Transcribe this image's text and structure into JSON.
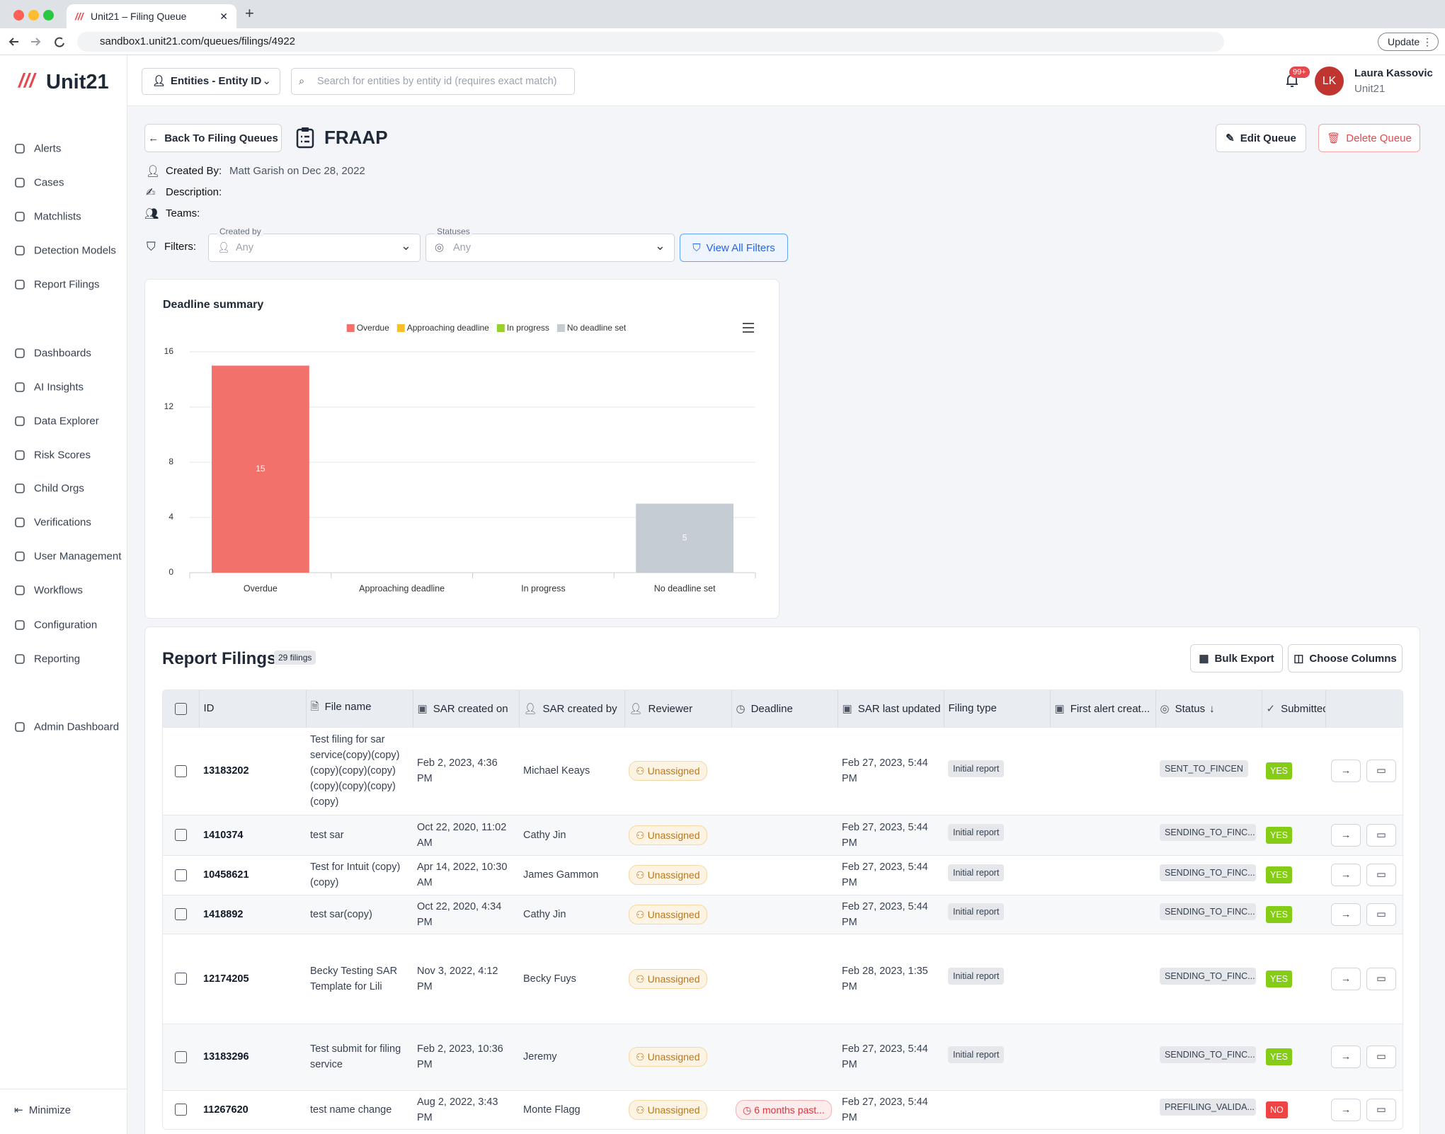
{
  "browser": {
    "tab_title": "Unit21 – Filing Queue",
    "url": "sandbox1.unit21.com/queues/filings/4922",
    "update": "Update"
  },
  "sidebar": {
    "brand": "Unit21",
    "nav": [
      "Alerts",
      "Cases",
      "Matchlists",
      "Detection Models",
      "Report Filings",
      "Dashboards",
      "AI Insights",
      "Data Explorer",
      "Risk Scores",
      "Child Orgs",
      "Verifications",
      "User Management",
      "Workflows",
      "Configuration",
      "Reporting",
      "Admin Dashboard"
    ],
    "minimize": "Minimize"
  },
  "topbar": {
    "entity_select": "Entities - Entity ID",
    "search_placeholder": "Search for entities by entity id (requires exact match)",
    "notifications": "99+",
    "user_initials": "LK",
    "user_name": "Laura Kassovic",
    "user_org": "Unit21"
  },
  "header": {
    "back": "Back To Filing Queues",
    "title": "FRAAP",
    "edit": "Edit Queue",
    "delete": "Delete Queue",
    "created_by_label": "Created By:",
    "created_by": "Matt Garish on Dec 28, 2022",
    "description_label": "Description:",
    "teams_label": "Teams:"
  },
  "filters": {
    "label": "Filters:",
    "created_by": {
      "label": "Created by",
      "value": "Any"
    },
    "statuses": {
      "label": "Statuses",
      "value": "Any"
    },
    "view_all": "View All Filters"
  },
  "chart_data": {
    "type": "bar",
    "title": "Deadline summary",
    "categories": [
      "Overdue",
      "Approaching deadline",
      "In progress",
      "No deadline set"
    ],
    "values": [
      15,
      0,
      0,
      5
    ],
    "colors": [
      "#f2716b",
      "#fbbf24",
      "#9acd32",
      "#c5ccd4"
    ],
    "ylim": [
      0,
      16
    ],
    "yticks": [
      0,
      4,
      8,
      12,
      16
    ],
    "grid": true,
    "legend": "top"
  },
  "table": {
    "title": "Report Filings",
    "count": "29 filings",
    "bulk_export": "Bulk Export",
    "choose_columns": "Choose Columns",
    "columns": [
      "ID",
      "File name",
      "SAR created on",
      "SAR created by",
      "Reviewer",
      "Deadline",
      "SAR last updated",
      "Filing type",
      "First alert creat...",
      "Status",
      "Submitted"
    ],
    "rows": [
      {
        "id": "13183202",
        "file_name": "Test filing for sar service(copy)(copy)(copy)(copy)(copy)(copy)(copy)(copy)(copy)",
        "sar_created_on": "Feb 2, 2023, 4:36 PM",
        "sar_created_by": "Michael Keays",
        "reviewer": "Unassigned",
        "sar_last_updated": "Feb 27, 2023, 5:44 PM",
        "filing_type": "Initial report",
        "status": "SENT_TO_FINCEN",
        "submitted": "YES"
      },
      {
        "id": "1410374",
        "file_name": "test sar",
        "sar_created_on": "Oct 22, 2020, 11:02 AM",
        "sar_created_by": "Cathy Jin",
        "reviewer": "Unassigned",
        "sar_last_updated": "Feb 27, 2023, 5:44 PM",
        "filing_type": "Initial report",
        "status": "SENDING_TO_FINC...",
        "submitted": "YES"
      },
      {
        "id": "10458621",
        "file_name": "Test for Intuit (copy)(copy)",
        "sar_created_on": "Apr 14, 2022, 10:30 AM",
        "sar_created_by": "James Gammon",
        "reviewer": "Unassigned",
        "sar_last_updated": "Feb 27, 2023, 5:44 PM",
        "filing_type": "Initial report",
        "status": "SENDING_TO_FINC...",
        "submitted": "YES"
      },
      {
        "id": "1418892",
        "file_name": "test sar(copy)",
        "sar_created_on": "Oct 22, 2020, 4:34 PM",
        "sar_created_by": "Cathy Jin",
        "reviewer": "Unassigned",
        "sar_last_updated": "Feb 27, 2023, 5:44 PM",
        "filing_type": "Initial report",
        "status": "SENDING_TO_FINC...",
        "submitted": "YES"
      },
      {
        "id": "12174205",
        "file_name": "Becky Testing SAR Template for Lili",
        "sar_created_on": "Nov 3, 2022, 4:12 PM",
        "sar_created_by": "Becky Fuys",
        "reviewer": "Unassigned",
        "sar_last_updated": "Feb 28, 2023, 1:35 PM",
        "filing_type": "Initial report",
        "status": "SENDING_TO_FINC...",
        "submitted": "YES"
      },
      {
        "id": "13183296",
        "file_name": "Test submit for filing service",
        "sar_created_on": "Feb 2, 2023, 10:36 PM",
        "sar_created_by": "Jeremy",
        "reviewer": "Unassigned",
        "sar_last_updated": "Feb 27, 2023, 5:44 PM",
        "filing_type": "Initial report",
        "status": "SENDING_TO_FINC...",
        "submitted": "YES"
      },
      {
        "id": "11267620",
        "file_name": "test name change",
        "sar_created_on": "Aug 2, 2022, 3:43 PM",
        "sar_created_by": "Monte Flagg",
        "reviewer": "Unassigned",
        "deadline": "6 months past...",
        "sar_last_updated": "Feb 27, 2023, 5:44 PM",
        "status": "PREFILING_VALIDA...",
        "submitted": "NO"
      }
    ]
  }
}
